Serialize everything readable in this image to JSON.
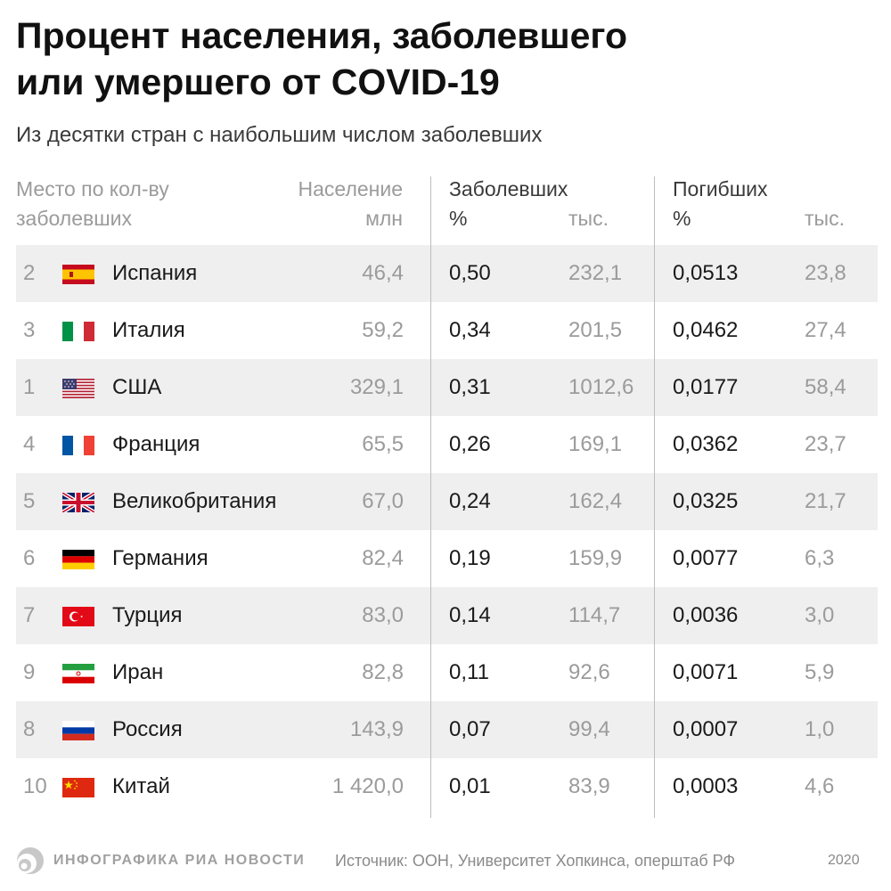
{
  "title_line1": "Процент населения, заболевшего",
  "title_line2": "или умершего от COVID-19",
  "subtitle": "Из десятки стран с наибольшим числом заболевших",
  "headers": {
    "rank_line1": "Место по кол-ву",
    "rank_line2": "заболевших",
    "population_line1": "Население",
    "population_line2": "млн",
    "infected": "Заболевших",
    "infected_pct": "%",
    "infected_k": "тыс.",
    "dead": "Погибших",
    "dead_pct": "%",
    "dead_k": "тыс."
  },
  "rows": [
    {
      "rank": "2",
      "flag": "spain-flag-icon",
      "country": "Испания",
      "population": "46,4",
      "infected_pct": "0,50",
      "infected_k": "232,1",
      "dead_pct": "0,0513",
      "dead_k": "23,8"
    },
    {
      "rank": "3",
      "flag": "italy-flag-icon",
      "country": "Италия",
      "population": "59,2",
      "infected_pct": "0,34",
      "infected_k": "201,5",
      "dead_pct": "0,0462",
      "dead_k": "27,4"
    },
    {
      "rank": "1",
      "flag": "usa-flag-icon",
      "country": "США",
      "population": "329,1",
      "infected_pct": "0,31",
      "infected_k": "1012,6",
      "dead_pct": "0,0177",
      "dead_k": "58,4"
    },
    {
      "rank": "4",
      "flag": "france-flag-icon",
      "country": "Франция",
      "population": "65,5",
      "infected_pct": "0,26",
      "infected_k": "169,1",
      "dead_pct": "0,0362",
      "dead_k": "23,7"
    },
    {
      "rank": "5",
      "flag": "uk-flag-icon",
      "country": "Великобритания",
      "population": "67,0",
      "infected_pct": "0,24",
      "infected_k": "162,4",
      "dead_pct": "0,0325",
      "dead_k": "21,7"
    },
    {
      "rank": "6",
      "flag": "germany-flag-icon",
      "country": "Германия",
      "population": "82,4",
      "infected_pct": "0,19",
      "infected_k": "159,9",
      "dead_pct": "0,0077",
      "dead_k": "6,3"
    },
    {
      "rank": "7",
      "flag": "turkey-flag-icon",
      "country": "Турция",
      "population": "83,0",
      "infected_pct": "0,14",
      "infected_k": "114,7",
      "dead_pct": "0,0036",
      "dead_k": "3,0"
    },
    {
      "rank": "9",
      "flag": "iran-flag-icon",
      "country": "Иран",
      "population": "82,8",
      "infected_pct": "0,11",
      "infected_k": "92,6",
      "dead_pct": "0,0071",
      "dead_k": "5,9"
    },
    {
      "rank": "8",
      "flag": "russia-flag-icon",
      "country": "Россия",
      "population": "143,9",
      "infected_pct": "0,07",
      "infected_k": "99,4",
      "dead_pct": "0,0007",
      "dead_k": "1,0"
    },
    {
      "rank": "10",
      "flag": "china-flag-icon",
      "country": "Китай",
      "population": "1 420,0",
      "infected_pct": "0,01",
      "infected_k": "83,9",
      "dead_pct": "0,0003",
      "dead_k": "4,6"
    }
  ],
  "footer": {
    "logo_icon": "ria-logo-icon",
    "logo_text": "ИНФОГРАФИКА РИА НОВОСТИ",
    "source": "Источник: ООН, Университет Хопкинса, оперштаб РФ",
    "year": "2020"
  },
  "colors": {
    "row_shade": "#efefef",
    "muted_text": "#9b9b9b",
    "divider": "#bdbdbd"
  }
}
